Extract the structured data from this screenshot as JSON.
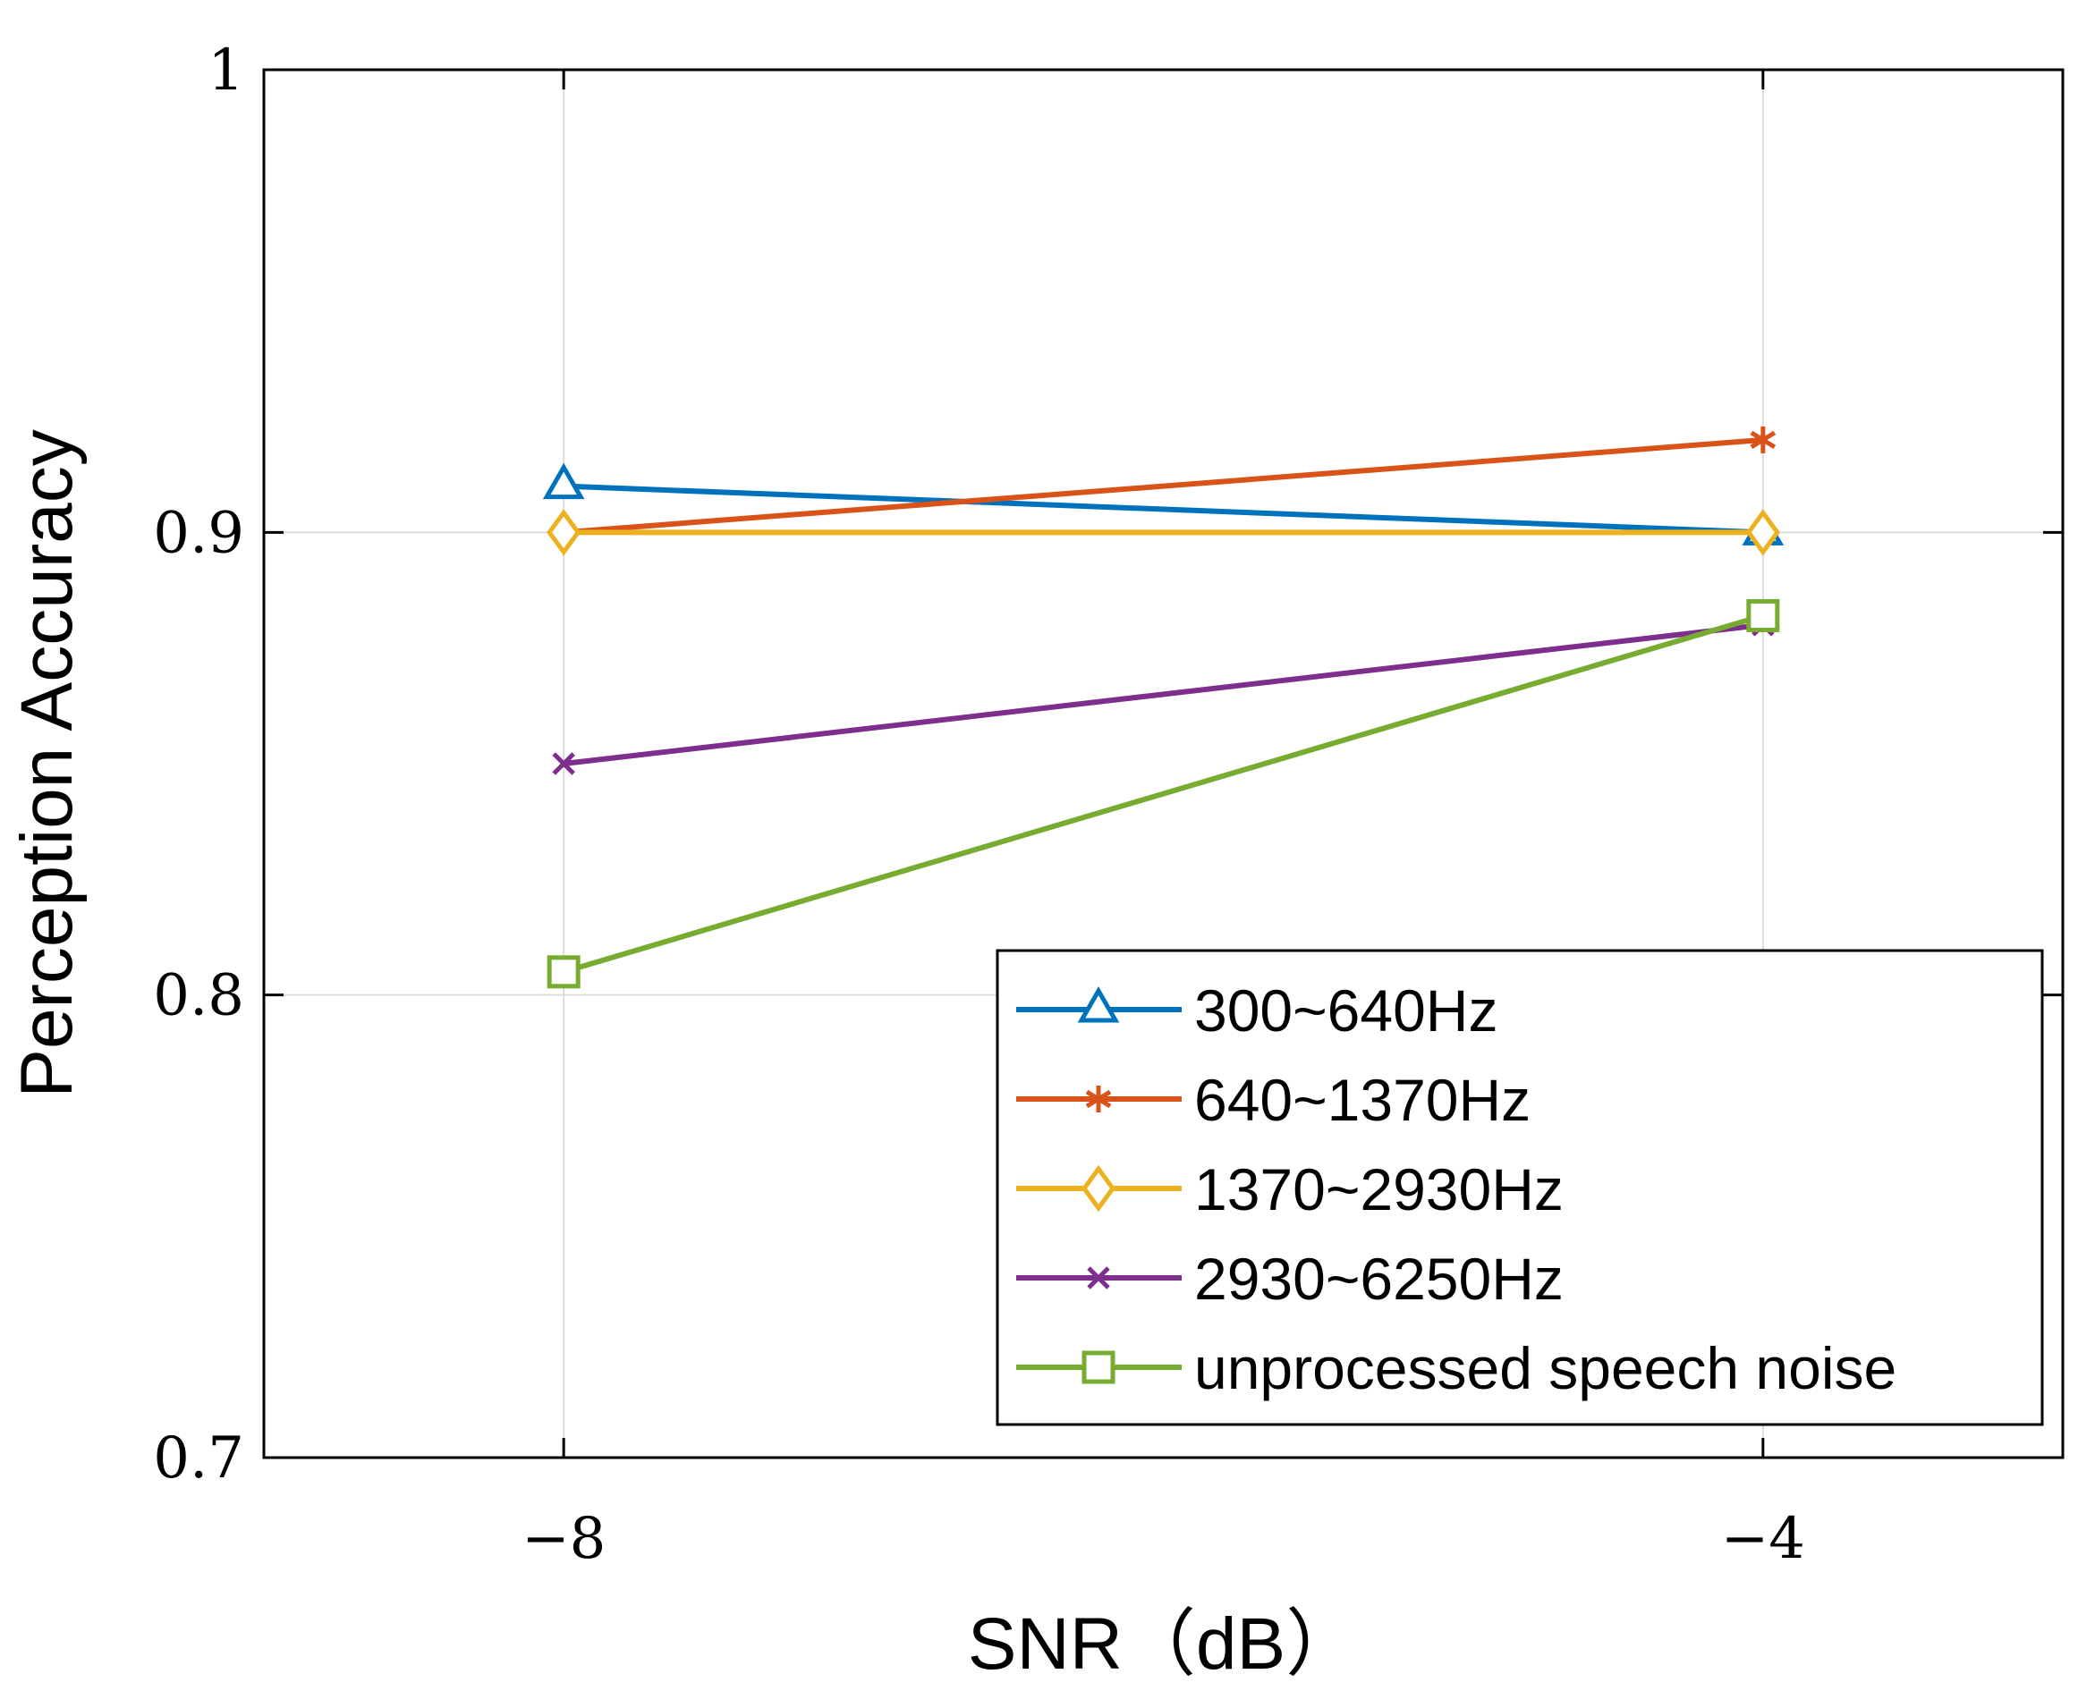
{
  "chart_data": {
    "type": "line",
    "xlabel": "SNR（dB）",
    "ylabel": "Perception Accuracy",
    "x": [
      -8,
      -4
    ],
    "xlim": [
      -9,
      -3
    ],
    "ylim": [
      0.7,
      1.0
    ],
    "xticks": [
      -8,
      -4
    ],
    "xtick_labels": [
      "−8",
      "−4"
    ],
    "yticks": [
      0.7,
      0.8,
      0.9,
      1.0
    ],
    "ytick_labels": [
      "0.7",
      "0.8",
      "0.9",
      "1"
    ],
    "grid": true,
    "legend_position": "bottom-right",
    "series": [
      {
        "name": "300~640Hz",
        "values": [
          0.91,
          0.9
        ],
        "color": "#0072BD",
        "marker": "triangle"
      },
      {
        "name": "640~1370Hz",
        "values": [
          0.9,
          0.92
        ],
        "color": "#D95319",
        "marker": "asterisk"
      },
      {
        "name": "1370~2930Hz",
        "values": [
          0.9,
          0.9
        ],
        "color": "#EDB120",
        "marker": "diamond"
      },
      {
        "name": "2930~6250Hz",
        "values": [
          0.85,
          0.88
        ],
        "color": "#7E2F8E",
        "marker": "x"
      },
      {
        "name": "unprocessed speech noise",
        "values": [
          0.805,
          0.882
        ],
        "color": "#77AC30",
        "marker": "square"
      }
    ]
  }
}
